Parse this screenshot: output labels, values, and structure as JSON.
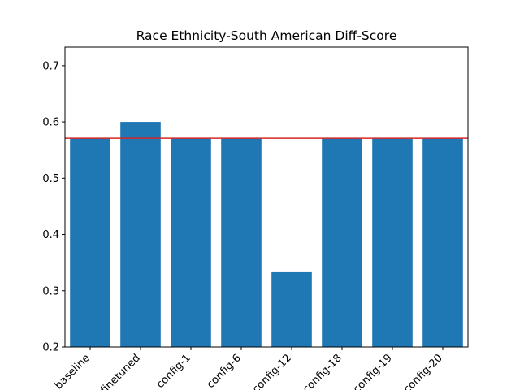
{
  "chart_data": {
    "type": "bar",
    "title": "Race Ethnicity-South American Diff-Score",
    "xlabel": "",
    "ylabel": "",
    "categories": [
      "baseline",
      "finetuned",
      "config-1",
      "config-6",
      "config-12",
      "config-18",
      "config-19",
      "config-20"
    ],
    "values": [
      0.571,
      0.6,
      0.571,
      0.571,
      0.333,
      0.571,
      0.571,
      0.571
    ],
    "ylim": [
      0.2,
      0.733
    ],
    "yticks": [
      0.2,
      0.3,
      0.4,
      0.5,
      0.6,
      0.7
    ],
    "reference_line": 0.571,
    "grid": false,
    "legend": "none",
    "bar_color": "#1f77b4",
    "reference_line_color": "#d62728"
  }
}
